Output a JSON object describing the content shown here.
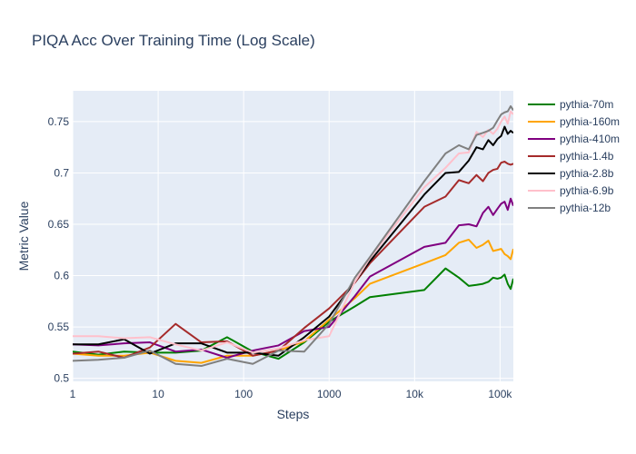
{
  "chart_data": {
    "type": "line",
    "title": "PIQA Acc Over Training Time (Log Scale)",
    "xlabel": "Steps",
    "ylabel": "Metric Value",
    "x_scale": "log",
    "xlim": [
      1,
      143000
    ],
    "ylim": [
      0.497,
      0.78
    ],
    "grid": true,
    "legend_position": "right",
    "x_ticks": [
      {
        "value": 1,
        "label": "1"
      },
      {
        "value": 10,
        "label": "10"
      },
      {
        "value": 100,
        "label": "100"
      },
      {
        "value": 1000,
        "label": "1000"
      },
      {
        "value": 10000,
        "label": "10k"
      },
      {
        "value": 100000,
        "label": "100k"
      }
    ],
    "y_ticks": [
      {
        "value": 0.5,
        "label": "0.5"
      },
      {
        "value": 0.55,
        "label": "0.55"
      },
      {
        "value": 0.6,
        "label": "0.6"
      },
      {
        "value": 0.65,
        "label": "0.65"
      },
      {
        "value": 0.7,
        "label": "0.7"
      },
      {
        "value": 0.75,
        "label": "0.75"
      }
    ],
    "series": [
      {
        "name": "pythia-70m",
        "color": "#008000",
        "x": [
          1,
          2,
          4,
          8,
          16,
          32,
          64,
          128,
          256,
          512,
          1000,
          2000,
          3000,
          13000,
          23000,
          33000,
          43000,
          53000,
          63000,
          73000,
          83000,
          93000,
          103000,
          113000,
          123000,
          133000,
          143000
        ],
        "y": [
          0.526,
          0.523,
          0.526,
          0.525,
          0.525,
          0.527,
          0.54,
          0.526,
          0.519,
          0.535,
          0.555,
          0.57,
          0.579,
          0.586,
          0.607,
          0.598,
          0.59,
          0.591,
          0.592,
          0.594,
          0.598,
          0.597,
          0.598,
          0.601,
          0.592,
          0.587,
          0.597
        ]
      },
      {
        "name": "pythia-160m",
        "color": "#ffa500",
        "x": [
          1,
          2,
          4,
          8,
          16,
          32,
          64,
          128,
          256,
          512,
          1000,
          2000,
          3000,
          13000,
          23000,
          33000,
          43000,
          53000,
          63000,
          73000,
          83000,
          93000,
          103000,
          113000,
          123000,
          133000,
          143000
        ],
        "y": [
          0.524,
          0.522,
          0.522,
          0.525,
          0.517,
          0.515,
          0.522,
          0.522,
          0.527,
          0.536,
          0.557,
          0.578,
          0.592,
          0.612,
          0.62,
          0.632,
          0.635,
          0.627,
          0.63,
          0.634,
          0.624,
          0.625,
          0.626,
          0.621,
          0.619,
          0.616,
          0.626
        ]
      },
      {
        "name": "pythia-410m",
        "color": "#800080",
        "x": [
          1,
          2,
          4,
          8,
          16,
          32,
          64,
          128,
          256,
          512,
          1000,
          2000,
          3000,
          13000,
          23000,
          33000,
          43000,
          53000,
          63000,
          73000,
          83000,
          93000,
          103000,
          113000,
          123000,
          133000,
          143000
        ],
        "y": [
          0.533,
          0.532,
          0.534,
          0.535,
          0.526,
          0.528,
          0.52,
          0.527,
          0.532,
          0.546,
          0.55,
          0.58,
          0.599,
          0.628,
          0.632,
          0.649,
          0.65,
          0.648,
          0.661,
          0.667,
          0.659,
          0.665,
          0.67,
          0.672,
          0.664,
          0.675,
          0.668
        ]
      },
      {
        "name": "pythia-1.4b",
        "color": "#a52a2a",
        "x": [
          1,
          2,
          4,
          8,
          16,
          32,
          64,
          128,
          256,
          512,
          1000,
          2000,
          3000,
          13000,
          23000,
          33000,
          43000,
          53000,
          63000,
          73000,
          83000,
          93000,
          103000,
          113000,
          123000,
          133000,
          143000
        ],
        "y": [
          0.524,
          0.526,
          0.52,
          0.53,
          0.553,
          0.535,
          0.536,
          0.522,
          0.527,
          0.549,
          0.568,
          0.593,
          0.612,
          0.667,
          0.677,
          0.693,
          0.69,
          0.698,
          0.692,
          0.7,
          0.703,
          0.704,
          0.71,
          0.711,
          0.709,
          0.708,
          0.709
        ]
      },
      {
        "name": "pythia-2.8b",
        "color": "#000000",
        "x": [
          1,
          2,
          4,
          8,
          16,
          32,
          64,
          128,
          256,
          512,
          1000,
          2000,
          3000,
          13000,
          23000,
          33000,
          43000,
          53000,
          63000,
          73000,
          83000,
          93000,
          103000,
          113000,
          123000,
          133000,
          143000
        ],
        "y": [
          0.533,
          0.533,
          0.538,
          0.524,
          0.534,
          0.534,
          0.525,
          0.525,
          0.522,
          0.54,
          0.56,
          0.594,
          0.614,
          0.679,
          0.7,
          0.701,
          0.712,
          0.725,
          0.723,
          0.732,
          0.727,
          0.733,
          0.736,
          0.745,
          0.738,
          0.741,
          0.739
        ]
      },
      {
        "name": "pythia-6.9b",
        "color": "#ffc0cb",
        "x": [
          1,
          2,
          4,
          8,
          16,
          32,
          64,
          128,
          256,
          512,
          1000,
          2000,
          3000,
          13000,
          23000,
          33000,
          43000,
          53000,
          63000,
          73000,
          83000,
          93000,
          103000,
          113000,
          123000,
          133000,
          143000
        ],
        "y": [
          0.541,
          0.541,
          0.539,
          0.54,
          0.533,
          0.527,
          0.535,
          0.525,
          0.529,
          0.537,
          0.541,
          0.594,
          0.617,
          0.686,
          0.705,
          0.719,
          0.72,
          0.74,
          0.735,
          0.742,
          0.738,
          0.743,
          0.75,
          0.755,
          0.748,
          0.76,
          0.757
        ]
      },
      {
        "name": "pythia-12b",
        "color": "#808080",
        "x": [
          1,
          2,
          4,
          8,
          16,
          32,
          64,
          128,
          256,
          512,
          1000,
          2000,
          3000,
          13000,
          23000,
          33000,
          43000,
          53000,
          63000,
          73000,
          83000,
          93000,
          103000,
          113000,
          123000,
          133000,
          143000
        ],
        "y": [
          0.517,
          0.518,
          0.52,
          0.527,
          0.514,
          0.512,
          0.519,
          0.514,
          0.527,
          0.526,
          0.553,
          0.598,
          0.618,
          0.692,
          0.719,
          0.727,
          0.723,
          0.737,
          0.739,
          0.741,
          0.744,
          0.751,
          0.757,
          0.759,
          0.76,
          0.765,
          0.761
        ]
      }
    ]
  }
}
